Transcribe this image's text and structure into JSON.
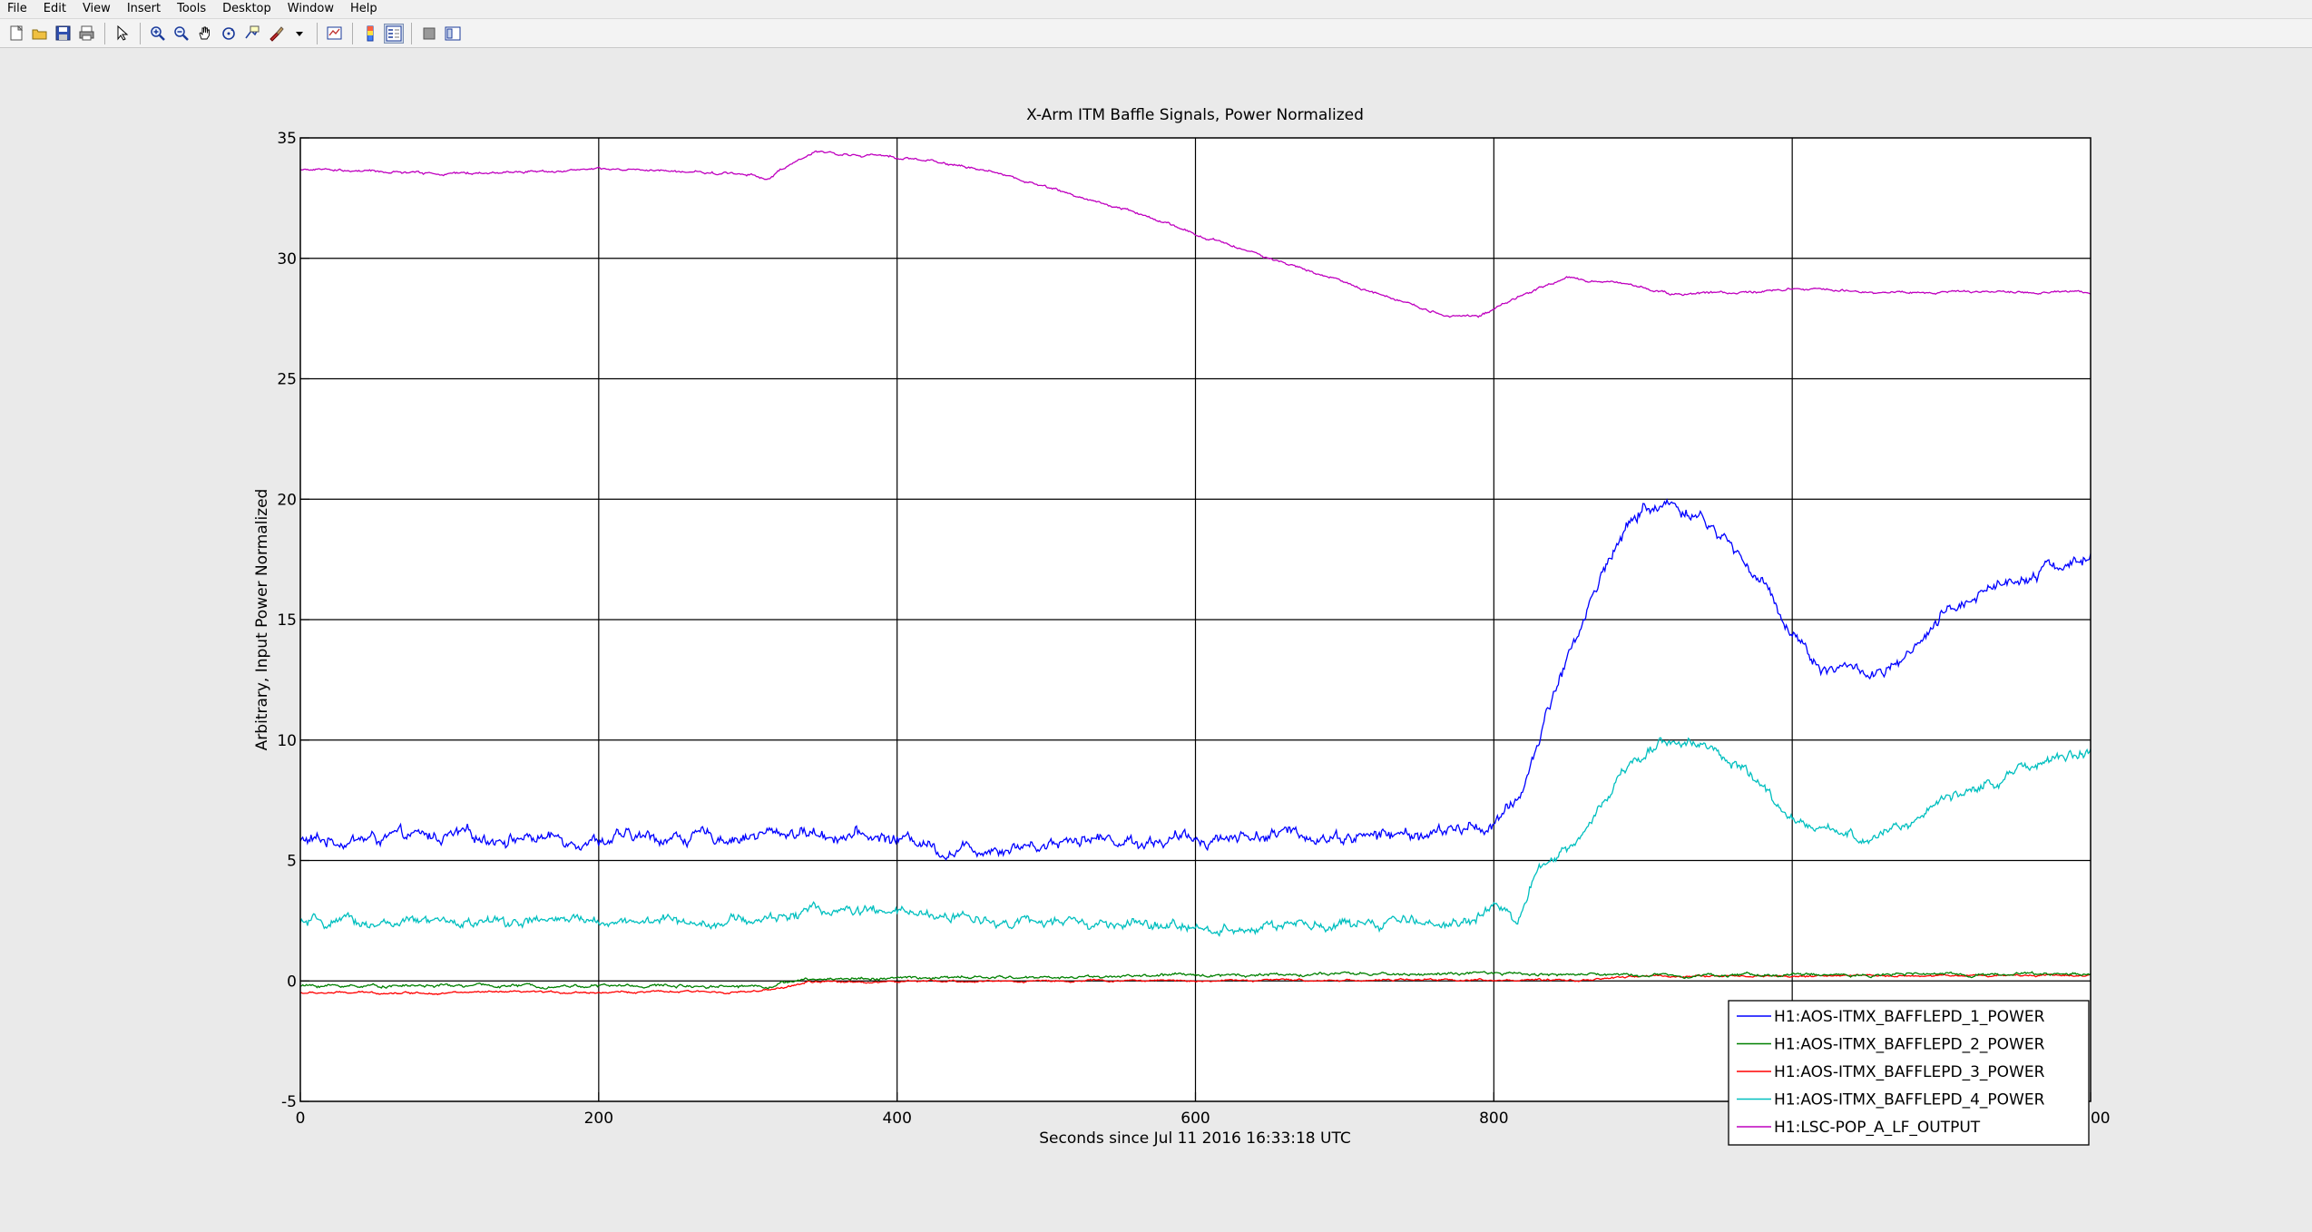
{
  "menu": [
    "File",
    "Edit",
    "View",
    "Insert",
    "Tools",
    "Desktop",
    "Window",
    "Help"
  ],
  "toolbar": [
    {
      "icon": "new-figure-icon"
    },
    {
      "icon": "open-file-icon"
    },
    {
      "icon": "save-icon"
    },
    {
      "icon": "print-icon"
    },
    {
      "sep": true
    },
    {
      "icon": "edit-plot-arrow-icon"
    },
    {
      "sep": true
    },
    {
      "icon": "zoom-in-icon"
    },
    {
      "icon": "zoom-out-icon"
    },
    {
      "icon": "pan-hand-icon"
    },
    {
      "icon": "rotate-3d-icon"
    },
    {
      "icon": "data-cursor-icon"
    },
    {
      "icon": "brush-icon"
    },
    {
      "icon": "dropdown-arrow-icon"
    },
    {
      "sep": true
    },
    {
      "icon": "link-plot-icon"
    },
    {
      "sep": true
    },
    {
      "icon": "colorbar-icon"
    },
    {
      "icon": "legend-icon",
      "active": true
    },
    {
      "sep": true
    },
    {
      "icon": "hide-plot-tools-icon"
    },
    {
      "icon": "show-plot-tools-icon"
    }
  ],
  "colors": {
    "figure_bg": "#eaeaea",
    "axes_bg": "#ffffff",
    "grid": "#000000",
    "pd1": "#0000ff",
    "pd2": "#008000",
    "pd3": "#ff0000",
    "pd4": "#00bfbf",
    "pop": "#bf00bf"
  },
  "chart_data": {
    "type": "line",
    "title": "X-Arm ITM Baffle Signals, Power Normalized",
    "xlabel": "Seconds since Jul 11 2016 16:33:18 UTC",
    "ylabel": "Arbitrary,  Input Power Normalized",
    "xlim": [
      0,
      1200
    ],
    "ylim": [
      -5,
      35
    ],
    "xticks": [
      0,
      200,
      400,
      600,
      800,
      1000,
      1200
    ],
    "yticks": [
      -5,
      0,
      5,
      10,
      15,
      20,
      25,
      30,
      35
    ],
    "grid": true,
    "legend_location": "bottom-right",
    "series": [
      {
        "name": "H1:AOS-ITMX_BAFFLEPD_1_POWER",
        "color": "#0000ff",
        "noise": 0.25,
        "points": [
          [
            0,
            5.8
          ],
          [
            100,
            6.0
          ],
          [
            200,
            5.9
          ],
          [
            300,
            6.0
          ],
          [
            330,
            6.2
          ],
          [
            400,
            5.9
          ],
          [
            420,
            5.8
          ],
          [
            430,
            5.4
          ],
          [
            470,
            5.6
          ],
          [
            500,
            5.7
          ],
          [
            520,
            6.0
          ],
          [
            560,
            5.8
          ],
          [
            600,
            5.9
          ],
          [
            650,
            6.1
          ],
          [
            700,
            6.0
          ],
          [
            760,
            6.1
          ],
          [
            800,
            6.5
          ],
          [
            810,
            7.0
          ],
          [
            820,
            8.0
          ],
          [
            840,
            12.0
          ],
          [
            860,
            15.0
          ],
          [
            880,
            18.0
          ],
          [
            900,
            19.6
          ],
          [
            920,
            19.8
          ],
          [
            940,
            19.2
          ],
          [
            960,
            18.0
          ],
          [
            980,
            16.5
          ],
          [
            1000,
            14.5
          ],
          [
            1020,
            13.0
          ],
          [
            1040,
            13.0
          ],
          [
            1060,
            12.6
          ],
          [
            1080,
            13.5
          ],
          [
            1100,
            15.0
          ],
          [
            1120,
            16.0
          ],
          [
            1140,
            16.5
          ],
          [
            1160,
            17.0
          ],
          [
            1180,
            17.3
          ],
          [
            1200,
            17.5
          ]
        ]
      },
      {
        "name": "H1:AOS-ITMX_BAFFLEPD_2_POWER",
        "color": "#008000",
        "noise": 0.06,
        "points": [
          [
            0,
            -0.2
          ],
          [
            300,
            -0.2
          ],
          [
            315,
            -0.2
          ],
          [
            330,
            0.0
          ],
          [
            360,
            0.1
          ],
          [
            500,
            0.15
          ],
          [
            600,
            0.25
          ],
          [
            800,
            0.3
          ],
          [
            900,
            0.25
          ],
          [
            1000,
            0.25
          ],
          [
            1200,
            0.3
          ]
        ]
      },
      {
        "name": "H1:AOS-ITMX_BAFFLEPD_3_POWER",
        "color": "#ff0000",
        "noise": 0.04,
        "points": [
          [
            0,
            -0.5
          ],
          [
            300,
            -0.45
          ],
          [
            315,
            -0.4
          ],
          [
            340,
            -0.05
          ],
          [
            500,
            0.0
          ],
          [
            800,
            0.05
          ],
          [
            850,
            0.0
          ],
          [
            900,
            0.2
          ],
          [
            1000,
            0.2
          ],
          [
            1200,
            0.25
          ]
        ]
      },
      {
        "name": "H1:AOS-ITMX_BAFFLEPD_4_POWER",
        "color": "#00bfbf",
        "noise": 0.2,
        "points": [
          [
            0,
            2.4
          ],
          [
            100,
            2.4
          ],
          [
            200,
            2.5
          ],
          [
            300,
            2.5
          ],
          [
            320,
            2.6
          ],
          [
            340,
            3.0
          ],
          [
            360,
            2.9
          ],
          [
            400,
            2.8
          ],
          [
            500,
            2.4
          ],
          [
            600,
            2.2
          ],
          [
            700,
            2.3
          ],
          [
            780,
            2.5
          ],
          [
            800,
            3.0
          ],
          [
            815,
            2.5
          ],
          [
            830,
            4.5
          ],
          [
            850,
            5.5
          ],
          [
            870,
            7.0
          ],
          [
            890,
            9.0
          ],
          [
            910,
            10.0
          ],
          [
            930,
            10.0
          ],
          [
            950,
            9.5
          ],
          [
            980,
            8.0
          ],
          [
            1000,
            6.5
          ],
          [
            1020,
            6.3
          ],
          [
            1040,
            6.0
          ],
          [
            1060,
            6.0
          ],
          [
            1080,
            6.5
          ],
          [
            1100,
            7.5
          ],
          [
            1140,
            8.5
          ],
          [
            1180,
            9.3
          ],
          [
            1200,
            9.5
          ]
        ]
      },
      {
        "name": "H1:LSC-POP_A_LF_OUTPUT",
        "color": "#bf00bf",
        "noise": 0.05,
        "points": [
          [
            0,
            33.7
          ],
          [
            100,
            33.5
          ],
          [
            200,
            33.7
          ],
          [
            300,
            33.5
          ],
          [
            315,
            33.3
          ],
          [
            320,
            33.6
          ],
          [
            345,
            34.4
          ],
          [
            400,
            34.2
          ],
          [
            430,
            34.0
          ],
          [
            470,
            33.5
          ],
          [
            520,
            32.6
          ],
          [
            560,
            31.9
          ],
          [
            600,
            31.0
          ],
          [
            650,
            30.0
          ],
          [
            700,
            29.0
          ],
          [
            740,
            28.2
          ],
          [
            770,
            27.6
          ],
          [
            790,
            27.6
          ],
          [
            820,
            28.5
          ],
          [
            850,
            29.2
          ],
          [
            880,
            29.0
          ],
          [
            900,
            28.8
          ],
          [
            920,
            28.5
          ],
          [
            1000,
            28.7
          ],
          [
            1100,
            28.6
          ],
          [
            1200,
            28.6
          ]
        ]
      }
    ]
  }
}
